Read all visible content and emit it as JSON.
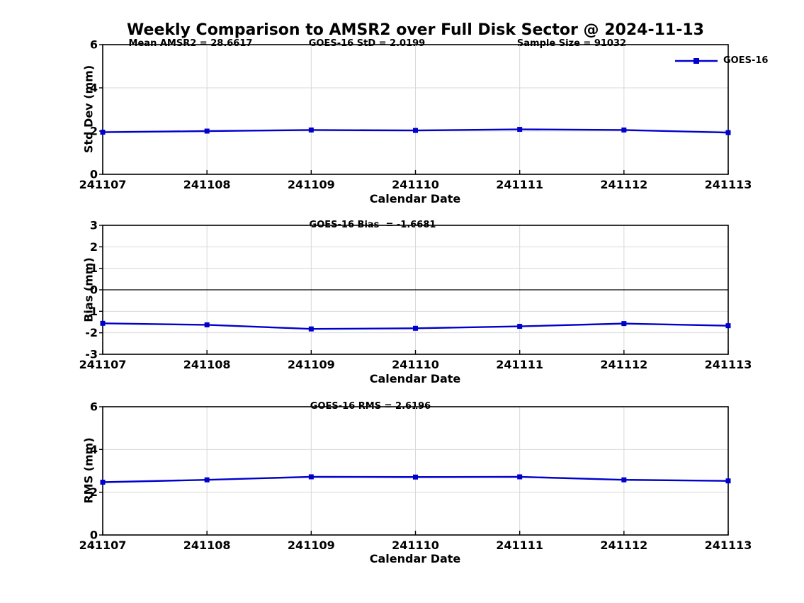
{
  "figure": {
    "title": "Weekly Comparison to AMSR2 over Full Disk Sector @ 2024-11-13",
    "background_color": "#ffffff",
    "line_color": "#0000cc",
    "grid_color": "#d8d8d8",
    "axis_color": "#000000",
    "legend": {
      "label": "GOES-16"
    }
  },
  "chart_data": [
    {
      "type": "line",
      "ylabel": "Std Dev (mm)",
      "xlabel": "Calendar Date",
      "categories": [
        "241107",
        "241108",
        "241109",
        "241110",
        "241111",
        "241112",
        "241113"
      ],
      "series": [
        {
          "name": "GOES-16",
          "values": [
            1.95,
            2.0,
            2.05,
            2.03,
            2.08,
            2.05,
            1.93
          ]
        }
      ],
      "ylim": [
        0,
        6
      ],
      "yticks": [
        0,
        2,
        4,
        6
      ],
      "grid": true,
      "zero_line": false,
      "legend_position": "top-right",
      "annotations": [
        "Mean AMSR2 = 28.6617",
        "GOES-16 StD = 2.0199",
        "Sample Size = 91032"
      ]
    },
    {
      "type": "line",
      "ylabel": "Bias (mm)",
      "xlabel": "Calendar Date",
      "categories": [
        "241107",
        "241108",
        "241109",
        "241110",
        "241111",
        "241112",
        "241113"
      ],
      "series": [
        {
          "name": "GOES-16",
          "values": [
            -1.56,
            -1.63,
            -1.82,
            -1.79,
            -1.7,
            -1.57,
            -1.67
          ]
        }
      ],
      "ylim": [
        -3,
        3
      ],
      "yticks": [
        -3,
        -2,
        -1,
        0,
        1,
        2,
        3
      ],
      "grid": true,
      "zero_line": true,
      "annotations": [
        "GOES-16 Bias  = -1.6681"
      ]
    },
    {
      "type": "line",
      "ylabel": "RMS (mm)",
      "xlabel": "Calendar Date",
      "categories": [
        "241107",
        "241108",
        "241109",
        "241110",
        "241111",
        "241112",
        "241113"
      ],
      "series": [
        {
          "name": "GOES-16",
          "values": [
            2.47,
            2.58,
            2.72,
            2.71,
            2.72,
            2.58,
            2.53
          ]
        }
      ],
      "ylim": [
        0,
        6
      ],
      "yticks": [
        0,
        2,
        4,
        6
      ],
      "grid": true,
      "zero_line": false,
      "annotations": [
        "GOES-16 RMS = 2.6196"
      ]
    }
  ]
}
